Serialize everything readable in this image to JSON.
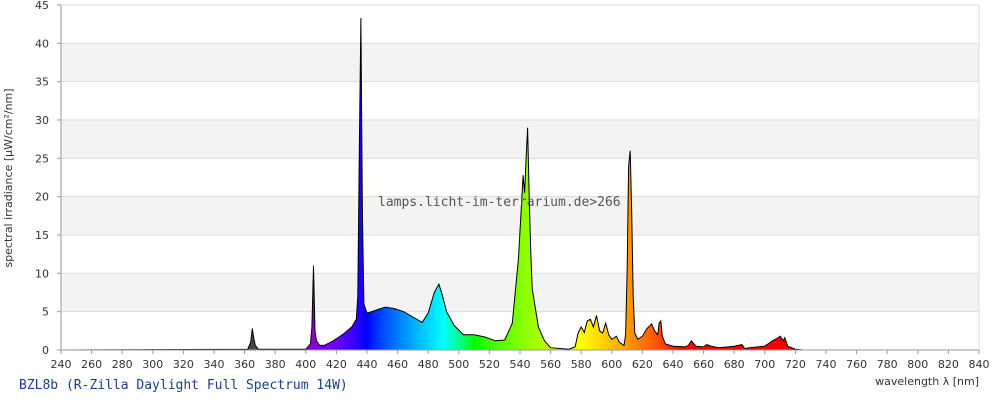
{
  "chart_data": {
    "type": "area",
    "title": "",
    "caption": "BZL8b (R-Zilla Daylight Full Spectrum 14W)",
    "watermark": "lamps.licht-im-terrarium.de>266",
    "xlabel": "wavelength λ [nm]",
    "ylabel": "spectral irradiance [µW/cm²/nm]",
    "xlim": [
      240,
      840
    ],
    "ylim": [
      0,
      45
    ],
    "xticks": [
      240,
      260,
      280,
      300,
      320,
      340,
      360,
      380,
      400,
      420,
      440,
      460,
      480,
      500,
      520,
      540,
      560,
      580,
      600,
      620,
      640,
      660,
      680,
      700,
      720,
      740,
      760,
      780,
      800,
      820,
      840
    ],
    "yticks": [
      0,
      5,
      10,
      15,
      20,
      25,
      30,
      35,
      40,
      45
    ],
    "grid": "horizontal alternating bands",
    "legend": "none",
    "fill": "spectral colors by wavelength",
    "series": [
      {
        "x": [
          240,
          362,
          364,
          365,
          366,
          367,
          369,
          400,
          403,
          404,
          405,
          406,
          407,
          409,
          412,
          418,
          424,
          430,
          433,
          434,
          435,
          436,
          437,
          438,
          440,
          446,
          452,
          458,
          464,
          470,
          476,
          480,
          484,
          487,
          489,
          492,
          497,
          503,
          510,
          517,
          524,
          530,
          535,
          539,
          542,
          543,
          544,
          545,
          546,
          547,
          548,
          552,
          556,
          560,
          566,
          572,
          576,
          578,
          580,
          582,
          584,
          586,
          588,
          590,
          592,
          594,
          596,
          598,
          600,
          603,
          605,
          608,
          609,
          610,
          611,
          612,
          613,
          614,
          615,
          617,
          620,
          623,
          626,
          628,
          630,
          631,
          632,
          633,
          635,
          640,
          648,
          650,
          652,
          655,
          660,
          662,
          665,
          670,
          680,
          685,
          687,
          690,
          700,
          705,
          708,
          710,
          712,
          713,
          715,
          720,
          725,
          830
        ],
        "y": [
          0,
          0.1,
          1,
          2.8,
          1.5,
          0.6,
          0.1,
          0.1,
          0.8,
          3,
          11,
          2.5,
          1.2,
          0.6,
          0.6,
          1.2,
          2,
          3,
          4,
          7,
          27,
          43.3,
          18,
          6,
          4.8,
          5.2,
          5.6,
          5.4,
          5,
          4.3,
          3.6,
          4.8,
          7.5,
          8.6,
          7.3,
          5,
          3.2,
          2,
          2,
          1.7,
          1.2,
          1.3,
          3.5,
          12,
          22.8,
          20.5,
          25,
          29,
          20,
          13,
          8,
          3,
          1.2,
          0.3,
          0.2,
          0.1,
          0.4,
          2.2,
          3,
          2.3,
          3.8,
          4,
          3,
          4.5,
          2.5,
          2.2,
          3.5,
          2,
          1.4,
          1.8,
          1,
          0.6,
          2,
          10,
          24,
          26,
          18,
          7,
          2.2,
          1.4,
          1.8,
          2.8,
          3.4,
          2.5,
          2,
          3.5,
          3.8,
          1.8,
          0.8,
          0.5,
          0.4,
          0.6,
          1.2,
          0.5,
          0.4,
          0.7,
          0.5,
          0.3,
          0.5,
          0.7,
          0.2,
          0.3,
          0.5,
          1.2,
          1.5,
          1.8,
          1.2,
          1.6,
          0.5,
          0.1,
          0,
          0
        ]
      }
    ]
  }
}
